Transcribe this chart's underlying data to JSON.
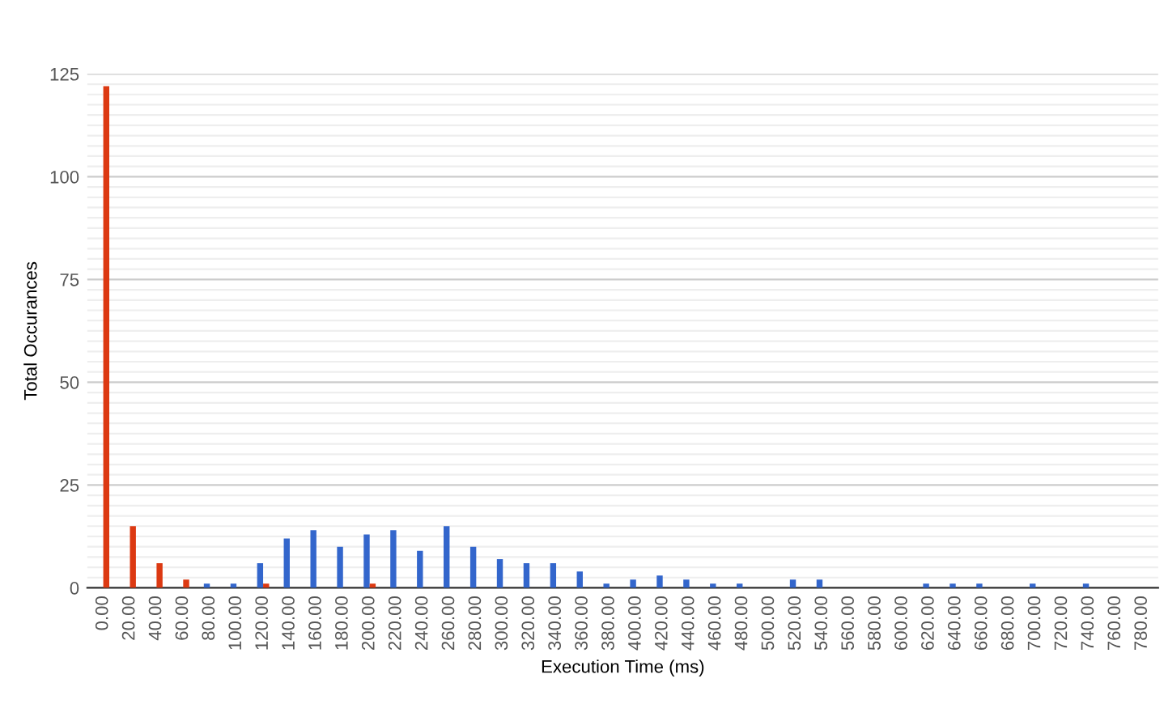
{
  "chart_data": {
    "type": "bar",
    "xlabel": "Execution Time (ms)",
    "ylabel": "Total Occurances",
    "categories": [
      "0.00",
      "20.00",
      "40.00",
      "60.00",
      "80.00",
      "100.00",
      "120.00",
      "140.00",
      "160.00",
      "180.00",
      "200.00",
      "220.00",
      "240.00",
      "260.00",
      "280.00",
      "300.00",
      "320.00",
      "340.00",
      "360.00",
      "380.00",
      "400.00",
      "420.00",
      "440.00",
      "460.00",
      "480.00",
      "500.00",
      "520.00",
      "540.00",
      "560.00",
      "580.00",
      "600.00",
      "620.00",
      "640.00",
      "660.00",
      "680.00",
      "700.00",
      "720.00",
      "740.00",
      "760.00",
      "780.00"
    ],
    "series": [
      {
        "color": "#3366cc",
        "values": [
          0,
          0,
          0,
          0,
          1,
          1,
          6,
          12,
          14,
          10,
          13,
          14,
          9,
          15,
          10,
          7,
          6,
          6,
          4,
          1,
          2,
          3,
          2,
          1,
          1,
          0,
          2,
          2,
          0,
          0,
          0,
          1,
          1,
          1,
          0,
          1,
          0,
          1,
          0,
          0
        ]
      },
      {
        "color": "#dc3912",
        "values": [
          122,
          15,
          6,
          2,
          0,
          0,
          1,
          0,
          0,
          0,
          1,
          0,
          0,
          0,
          0,
          0,
          0,
          0,
          0,
          0,
          0,
          0,
          0,
          0,
          0,
          0,
          0,
          0,
          0,
          0,
          0,
          0,
          0,
          0,
          0,
          0,
          0,
          0,
          0,
          0
        ]
      }
    ],
    "ylim": [
      0,
      125
    ],
    "yticks": [
      0,
      {
        "value": 2.5,
        "label": null
      },
      {
        "value": 5,
        "label": null
      },
      {
        "value": 7.5,
        "label": null
      },
      {
        "value": 10,
        "label": null
      },
      {
        "value": 12.5,
        "label": null
      },
      {
        "value": 15,
        "label": null
      },
      {
        "value": 17.5,
        "label": null
      },
      {
        "value": 20,
        "label": null
      },
      {
        "value": 22.5,
        "label": null
      },
      25,
      {
        "value": 27.5,
        "label": null
      },
      {
        "value": 30,
        "label": null
      },
      {
        "value": 32.5,
        "label": null
      },
      {
        "value": 35,
        "label": null
      },
      {
        "value": 37.5,
        "label": null
      },
      {
        "value": 40,
        "label": null
      },
      {
        "value": 42.5,
        "label": null
      },
      {
        "value": 45,
        "label": null
      },
      {
        "value": 47.5,
        "label": null
      },
      50,
      {
        "value": 52.5,
        "label": null
      },
      {
        "value": 55,
        "label": null
      },
      {
        "value": 57.5,
        "label": null
      },
      {
        "value": 60,
        "label": null
      },
      {
        "value": 62.5,
        "label": null
      },
      {
        "value": 65,
        "label": null
      },
      {
        "value": 67.5,
        "label": null
      },
      {
        "value": 70,
        "label": null
      },
      {
        "value": 72.5,
        "label": null
      },
      75,
      {
        "value": 77.5,
        "label": null
      },
      {
        "value": 80,
        "label": null
      },
      {
        "value": 82.5,
        "label": null
      },
      {
        "value": 85,
        "label": null
      },
      {
        "value": 87.5,
        "label": null
      },
      {
        "value": 90,
        "label": null
      },
      {
        "value": 92.5,
        "label": null
      },
      {
        "value": 95,
        "label": null
      },
      {
        "value": 97.5,
        "label": null
      },
      100,
      {
        "value": 102.5,
        "label": null
      },
      {
        "value": 105,
        "label": null
      },
      {
        "value": 107.5,
        "label": null
      },
      {
        "value": 110,
        "label": null
      },
      {
        "value": 112.5,
        "label": null
      },
      {
        "value": 115,
        "label": null
      },
      {
        "value": 117.5,
        "label": null
      },
      {
        "value": 120,
        "label": null
      },
      {
        "value": 122.5,
        "label": null
      },
      125
    ],
    "grid": "y"
  }
}
